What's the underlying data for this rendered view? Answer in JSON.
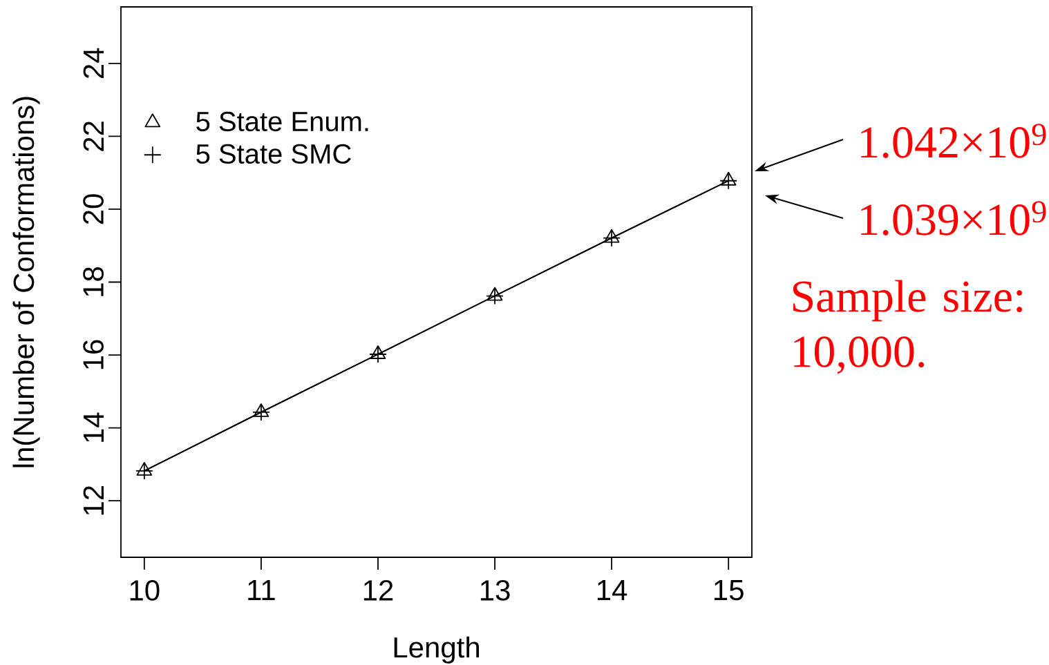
{
  "chart_data": {
    "type": "line",
    "xlabel": "Length",
    "ylabel": "ln(Number of Conformations)",
    "x": [
      10,
      11,
      12,
      13,
      14,
      15
    ],
    "series": [
      {
        "name": "5 State Enum.",
        "color": "#000000",
        "marker": "triangle",
        "line_style": "solid",
        "values": [
          12.82,
          14.43,
          16.02,
          17.62,
          19.21,
          20.78
        ]
      },
      {
        "name": "5 State SMC",
        "color": "#000000",
        "marker": "cross",
        "line_style": "solid",
        "values": [
          12.82,
          14.43,
          16.02,
          17.62,
          19.21,
          20.78
        ]
      }
    ],
    "xlim": [
      9.8,
      15.2
    ],
    "ylim": [
      10.45,
      25.55
    ],
    "xticks": [
      10,
      11,
      12,
      13,
      14,
      15
    ],
    "yticks": [
      12,
      14,
      16,
      18,
      20,
      22,
      24
    ],
    "legend": "top left",
    "annotations": [
      "1.042×10$^{9}$",
      "1.039×10$^{9}$",
      "Sample size: 10,000."
    ]
  }
}
